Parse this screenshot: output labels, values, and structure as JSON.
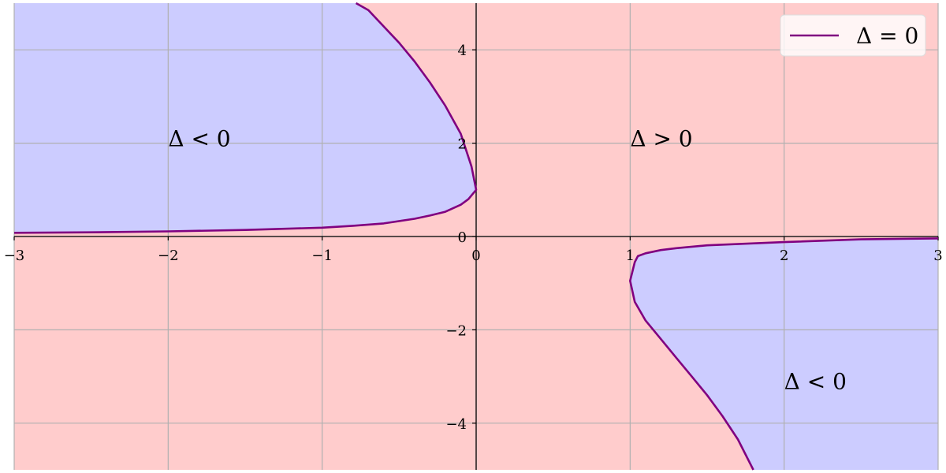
{
  "chart_data": {
    "type": "line",
    "title": "",
    "xlabel": "",
    "ylabel": "",
    "xlim": [
      -3,
      3
    ],
    "ylim": [
      -5,
      5
    ],
    "grid": true,
    "legend_position": "top-right",
    "x_ticks": [
      -3,
      -2,
      -1,
      0,
      1,
      2,
      3
    ],
    "y_ticks": [
      -4,
      -2,
      0,
      2,
      4
    ],
    "x_tick_labels": [
      "−3",
      "−2",
      "−1",
      "0",
      "1",
      "2",
      "3"
    ],
    "y_tick_labels": [
      "−4",
      "−2",
      "0",
      "2",
      "4"
    ],
    "colors": {
      "positive_region": "#ffcccc",
      "negative_region": "#ccccff",
      "curve": "#800080",
      "grid": "#b0b0b0",
      "axis": "#000000"
    },
    "series": [
      {
        "name": "Δ = 0",
        "branches": [
          {
            "x": [
              -3,
              -2.5,
              -2,
              -1.5,
              -1,
              -0.8,
              -0.6,
              -0.4,
              -0.3,
              -0.2,
              -0.1,
              -0.05,
              0,
              -0.03,
              -0.1,
              -0.2,
              -0.3,
              -0.4,
              -0.5,
              -0.6,
              -0.7,
              -0.78
            ],
            "y": [
              0.08,
              0.09,
              0.11,
              0.14,
              0.19,
              0.23,
              0.28,
              0.38,
              0.45,
              0.53,
              0.68,
              0.8,
              1.0,
              1.5,
              2.2,
              2.8,
              3.3,
              3.75,
              4.15,
              4.5,
              4.85,
              5.0
            ]
          },
          {
            "x": [
              3,
              2.5,
              2,
              1.5,
              1.3,
              1.2,
              1.1,
              1.05,
              1.03,
              1,
              1.03,
              1.1,
              1.2,
              1.3,
              1.4,
              1.5,
              1.6,
              1.7,
              1.8
            ],
            "y": [
              -0.04,
              -0.06,
              -0.12,
              -0.19,
              -0.25,
              -0.29,
              -0.36,
              -0.42,
              -0.55,
              -0.95,
              -1.4,
              -1.8,
              -2.2,
              -2.6,
              -3.0,
              -3.4,
              -3.85,
              -4.35,
              -5.0
            ]
          }
        ]
      }
    ],
    "annotations": [
      {
        "text": "Δ < 0",
        "x": -2,
        "y": 2.1
      },
      {
        "text": "Δ > 0",
        "x": 1,
        "y": 2.1
      },
      {
        "text": "Δ < 0",
        "x": 2,
        "y": -3.1
      }
    ],
    "legend": [
      {
        "label": "Δ = 0",
        "color": "#800080"
      }
    ]
  }
}
